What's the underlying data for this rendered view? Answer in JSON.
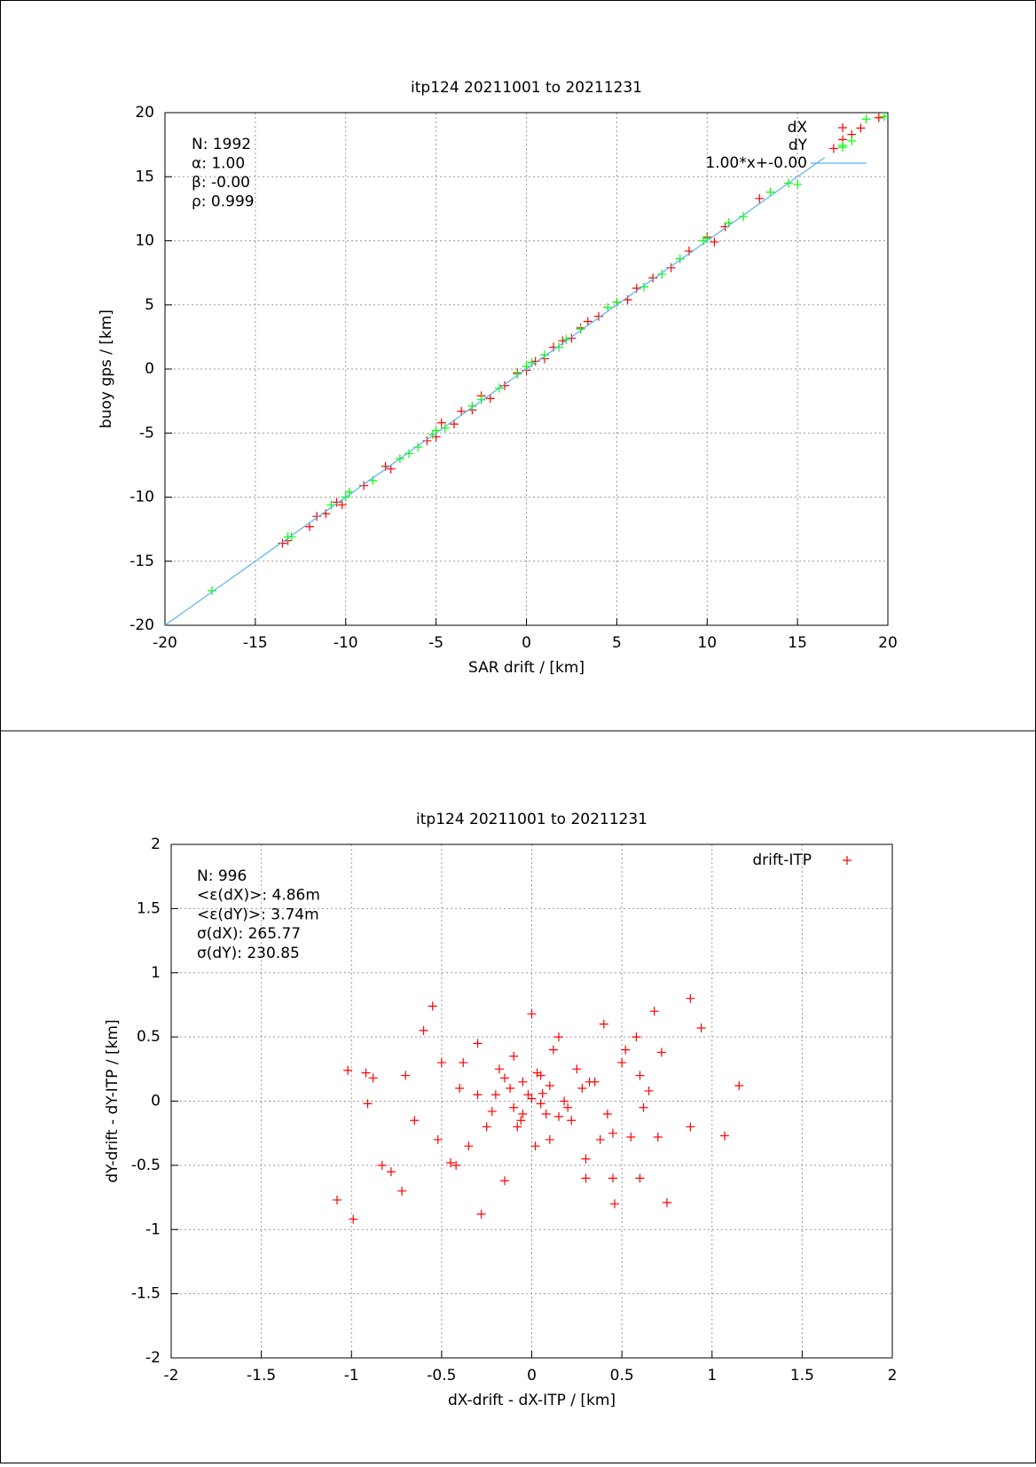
{
  "chart_data": [
    {
      "type": "scatter",
      "title": "itp124 20211001 to 20211231",
      "xlabel": "SAR drift / [km]",
      "ylabel": "buoy gps / [km]",
      "xlim": [
        -20,
        20
      ],
      "ylim": [
        -20,
        20
      ],
      "xticks": [
        -20,
        -15,
        -10,
        -5,
        0,
        5,
        10,
        15,
        20
      ],
      "yticks": [
        -20,
        -15,
        -10,
        -5,
        0,
        5,
        10,
        15,
        20
      ],
      "grid": true,
      "annotations": [
        "N: 1992",
        "α: 1.00",
        "β: -0.00",
        "ρ: 0.999"
      ],
      "series": [
        {
          "name": "dX",
          "color": "#ff0000",
          "style": "points",
          "x": [
            -13.5,
            -13.2,
            -12,
            -11.6,
            -11.1,
            -10.5,
            -10.2,
            -9,
            -7.8,
            -7.5,
            -5.5,
            -5,
            -4.7,
            -4,
            -3.6,
            -3,
            -2.5,
            -2,
            -1.2,
            -0.5,
            0,
            0.5,
            1,
            1.5,
            2,
            2.5,
            3,
            3.4,
            4,
            5,
            5.6,
            6.1,
            7,
            8,
            9,
            10,
            10.4,
            11,
            12.9,
            17,
            17.5,
            18,
            18.5,
            19.5
          ],
          "values": [
            -13.6,
            -13.4,
            -12.3,
            -11.5,
            -11.3,
            -10.4,
            -10.6,
            -9.1,
            -7.6,
            -7.8,
            -5.6,
            -5.3,
            -4.2,
            -4.3,
            -3.3,
            -3.2,
            -2.1,
            -2.3,
            -1.3,
            -0.3,
            -0.1,
            0.6,
            0.8,
            1.7,
            2.2,
            2.4,
            3.2,
            3.7,
            4.1,
            5.2,
            5.4,
            6.3,
            7.1,
            7.9,
            9.2,
            10.3,
            9.9,
            11.1,
            13.3,
            17.2,
            17.9,
            18.3,
            18.8,
            19.6
          ]
        },
        {
          "name": "dY",
          "color": "#00ff00",
          "style": "points",
          "x": [
            -17.4,
            -13.2,
            -13,
            -10.8,
            -10,
            -9.8,
            -8.5,
            -7,
            -6.5,
            -6,
            -5.2,
            -5,
            -4.5,
            -3,
            -2.5,
            -1.5,
            -0.5,
            0,
            0.3,
            1,
            1.8,
            2.2,
            3,
            4.5,
            5,
            6.5,
            7.5,
            8.5,
            9.8,
            10,
            11.2,
            12,
            13.5,
            14.5,
            15,
            17.5,
            18,
            18.8,
            19.8
          ],
          "values": [
            -17.3,
            -13.1,
            -13.1,
            -10.6,
            -10,
            -9.6,
            -8.7,
            -7,
            -6.6,
            -6.1,
            -5.1,
            -4.8,
            -4.6,
            -2.9,
            -2.4,
            -1.5,
            -0.4,
            0.2,
            0.5,
            1.1,
            1.7,
            2.3,
            3.1,
            4.8,
            5.2,
            6.4,
            7.4,
            8.6,
            10,
            10.2,
            11.4,
            11.9,
            13.8,
            14.5,
            14.4,
            17.3,
            17.8,
            19.5,
            19.7
          ]
        },
        {
          "name": "1.00*x+-0.00",
          "color": "#56b4e9",
          "style": "line",
          "x": [
            -20,
            16.5
          ],
          "values": [
            -20,
            16.5
          ]
        }
      ]
    },
    {
      "type": "scatter",
      "title": "itp124 20211001 to 20211231",
      "xlabel": "dX-drift - dX-ITP / [km]",
      "ylabel": "dY-drift - dY-ITP / [km]",
      "xlim": [
        -2,
        2
      ],
      "ylim": [
        -2,
        2
      ],
      "xticks": [
        -2,
        -1.5,
        -1,
        -0.5,
        0,
        0.5,
        1,
        1.5,
        2
      ],
      "yticks": [
        -2,
        -1.5,
        -1,
        -0.5,
        0,
        0.5,
        1,
        1.5,
        2
      ],
      "grid": true,
      "annotations": [
        "N: 996",
        "<ε(dX)>:  4.86m",
        "<ε(dY)>: 3.74m",
        "σ(dX):  265.77",
        "σ(dY):  230.85"
      ],
      "series": [
        {
          "name": "drift-ITP",
          "color": "#ff0000",
          "style": "points",
          "x": [
            -1.08,
            -0.99,
            -1.02,
            -0.92,
            -0.91,
            -0.28,
            0.88,
            0.94,
            1.15,
            1.07,
            0.75,
            0.46,
            -0.55,
            0.68,
            0.88,
            0.6,
            -0.72,
            -0.83,
            -0.78,
            -0.65,
            -0.5,
            -0.45,
            -0.4,
            -0.35,
            -0.3,
            -0.25,
            -0.2,
            -0.15,
            -0.1,
            -0.05,
            0,
            0.05,
            0.1,
            0.15,
            0.2,
            0.25,
            0.3,
            0.35,
            0.4,
            0.45,
            0.5,
            0.55,
            0.6,
            0.65,
            -0.6,
            -0.7,
            -0.52,
            -0.3,
            -0.18,
            -0.08,
            0.02,
            0.12,
            0.22,
            0.32,
            0.42,
            0.52,
            0.62,
            0.7,
            -0.12,
            -0.02,
            0.08,
            0.18,
            -0.22,
            0.28,
            -0.38,
            0.38,
            -0.05,
            0.05,
            0.0,
            0.1,
            -0.1,
            0.15,
            -0.15,
            0.06,
            -0.06,
            0.03,
            0.58,
            0.72,
            -0.88,
            0.45,
            -0.42,
            0.3
          ],
          "values": [
            -0.77,
            -0.92,
            0.24,
            0.22,
            -0.02,
            -0.88,
            0.8,
            0.57,
            0.12,
            -0.27,
            -0.79,
            -0.8,
            0.74,
            0.7,
            -0.2,
            -0.6,
            -0.7,
            -0.5,
            -0.55,
            -0.15,
            0.3,
            -0.48,
            0.1,
            -0.35,
            0.45,
            -0.2,
            0.05,
            -0.62,
            0.35,
            -0.1,
            0.68,
            0.2,
            -0.3,
            0.5,
            -0.05,
            0.25,
            -0.45,
            0.15,
            0.6,
            -0.25,
            0.3,
            -0.28,
            0.2,
            0.08,
            0.55,
            0.2,
            -0.3,
            0.05,
            0.25,
            -0.2,
            -0.35,
            0.4,
            -0.15,
            0.15,
            -0.1,
            0.4,
            -0.05,
            -0.28,
            0.1,
            0.05,
            -0.1,
            0.0,
            -0.08,
            0.1,
            0.3,
            -0.3,
            0.15,
            -0.02,
            0.02,
            0.12,
            -0.05,
            -0.12,
            0.18,
            0.06,
            -0.15,
            0.22,
            0.5,
            0.38,
            0.18,
            -0.6,
            -0.5,
            -0.6
          ]
        }
      ]
    }
  ]
}
